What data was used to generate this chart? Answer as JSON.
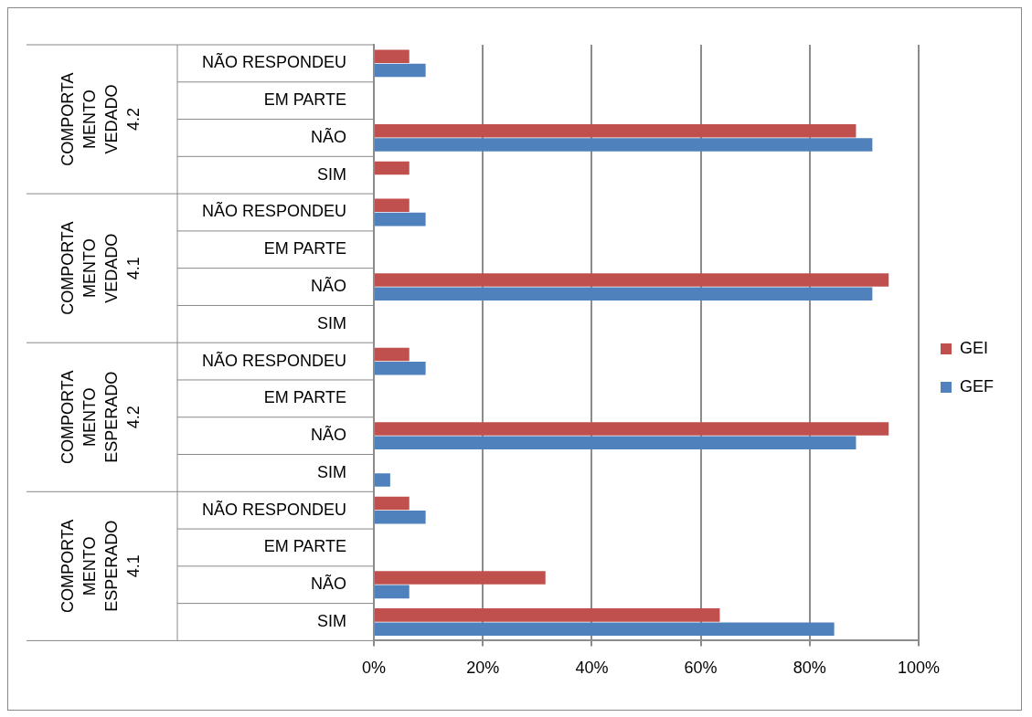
{
  "chart_data": {
    "type": "bar",
    "orientation": "horizontal",
    "categories": [
      "NÃO RESPONDEU",
      "EM PARTE",
      "NÃO",
      "SIM",
      "NÃO RESPONDEU",
      "EM PARTE",
      "NÃO",
      "SIM",
      "NÃO RESPONDEU",
      "EM PARTE",
      "NÃO",
      "SIM",
      "NÃO RESPONDEU",
      "EM PARTE",
      "NÃO",
      "SIM"
    ],
    "series": [
      {
        "name": "GEI",
        "color": "#c0504d",
        "values": [
          6.5,
          0,
          88.5,
          6.5,
          6.5,
          0,
          94.5,
          0,
          6.5,
          0,
          94.5,
          0,
          6.5,
          0,
          31.5,
          63.5
        ]
      },
      {
        "name": "GEF",
        "color": "#4f81bd",
        "values": [
          9.5,
          0,
          91.5,
          0,
          9.5,
          0,
          91.5,
          0,
          9.5,
          0,
          88.5,
          3,
          9.5,
          0,
          6.5,
          84.5
        ]
      }
    ],
    "xlim": [
      0,
      100
    ],
    "xticks": [
      {
        "value": 0,
        "label": "0%"
      },
      {
        "value": 20,
        "label": "20%"
      },
      {
        "value": 40,
        "label": "40%"
      },
      {
        "value": 60,
        "label": "60%"
      },
      {
        "value": 80,
        "label": "80%"
      },
      {
        "value": 100,
        "label": "100%"
      }
    ],
    "annotations": [
      "COMPORTA MENTO VEDADO 4.2",
      "COMPORTA MENTO VEDADO 4.1",
      "COMPORTA MENTO ESPERADO 4.2",
      "COMPORTA MENTO ESPERADO 4.1"
    ],
    "grid": "x",
    "legend": "right"
  }
}
